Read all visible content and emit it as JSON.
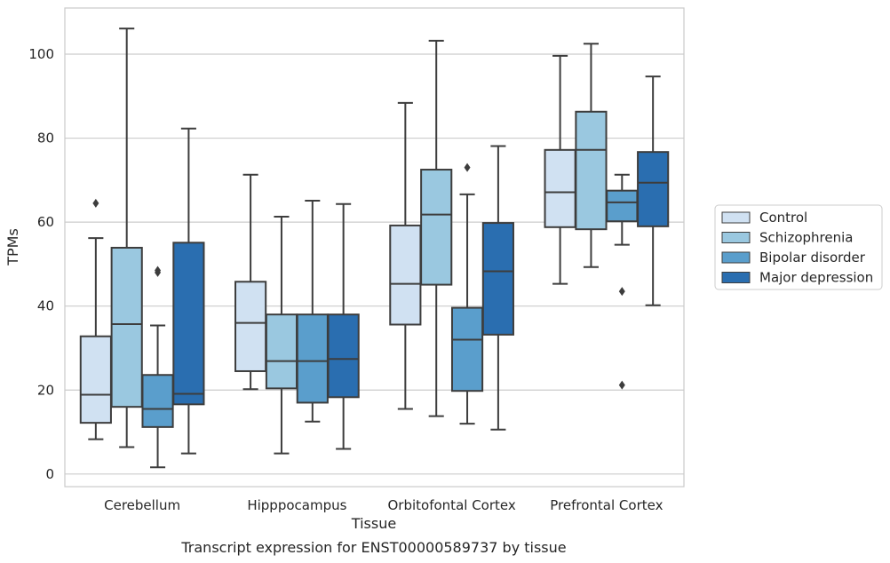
{
  "caption": "Transcript expression for ENST00000589737 by tissue",
  "chart_data": {
    "type": "box",
    "title": "",
    "xlabel": "Tissue",
    "ylabel": "TPMs",
    "ylim": [
      -3,
      111
    ],
    "y_ticks": [
      0,
      20,
      40,
      60,
      80,
      100
    ],
    "grid": "horizontal",
    "legend_position": "right",
    "categories": [
      "Cerebellum",
      "Hipppocampus",
      "Orbitofontal Cortex",
      "Prefrontal Cortex"
    ],
    "series": [
      {
        "name": "Control",
        "color": "#d0e1f2",
        "boxes": [
          {
            "whisker_low": 8.3,
            "q1": 12.2,
            "median": 18.9,
            "q3": 32.8,
            "whisker_high": 56.2,
            "outliers": [
              64.5
            ]
          },
          {
            "whisker_low": 20.2,
            "q1": 24.5,
            "median": 36.0,
            "q3": 45.8,
            "whisker_high": 71.3,
            "outliers": []
          },
          {
            "whisker_low": 15.5,
            "q1": 35.6,
            "median": 45.3,
            "q3": 59.2,
            "whisker_high": 88.4,
            "outliers": []
          },
          {
            "whisker_low": 45.3,
            "q1": 58.8,
            "median": 67.1,
            "q3": 77.2,
            "whisker_high": 99.6,
            "outliers": []
          }
        ]
      },
      {
        "name": "Schizophrenia",
        "color": "#9ac8e0",
        "boxes": [
          {
            "whisker_low": 6.4,
            "q1": 16.0,
            "median": 35.7,
            "q3": 53.9,
            "whisker_high": 106.1,
            "outliers": []
          },
          {
            "whisker_low": 4.9,
            "q1": 20.4,
            "median": 26.9,
            "q3": 38.0,
            "whisker_high": 61.3,
            "outliers": []
          },
          {
            "whisker_low": 13.8,
            "q1": 45.1,
            "median": 61.8,
            "q3": 72.5,
            "whisker_high": 103.2,
            "outliers": []
          },
          {
            "whisker_low": 49.3,
            "q1": 58.3,
            "median": 77.2,
            "q3": 86.3,
            "whisker_high": 102.5,
            "outliers": []
          }
        ]
      },
      {
        "name": "Bipolar disorder",
        "color": "#5a9ecc",
        "boxes": [
          {
            "whisker_low": 1.6,
            "q1": 11.2,
            "median": 15.5,
            "q3": 23.6,
            "whisker_high": 35.4,
            "outliers": [
              48.0,
              48.5
            ]
          },
          {
            "whisker_low": 12.5,
            "q1": 17.0,
            "median": 26.9,
            "q3": 38.0,
            "whisker_high": 65.1,
            "outliers": []
          },
          {
            "whisker_low": 12.0,
            "q1": 19.8,
            "median": 32.0,
            "q3": 39.6,
            "whisker_high": 66.6,
            "outliers": [
              73.0
            ]
          },
          {
            "whisker_low": 54.6,
            "q1": 60.2,
            "median": 64.7,
            "q3": 67.5,
            "whisker_high": 71.3,
            "outliers": [
              43.5,
              21.2
            ]
          }
        ]
      },
      {
        "name": "Major depression",
        "color": "#2a6eb0",
        "boxes": [
          {
            "whisker_low": 4.9,
            "q1": 16.6,
            "median": 19.1,
            "q3": 55.1,
            "whisker_high": 82.3,
            "outliers": []
          },
          {
            "whisker_low": 6.0,
            "q1": 18.3,
            "median": 27.4,
            "q3": 38.0,
            "whisker_high": 64.3,
            "outliers": []
          },
          {
            "whisker_low": 10.6,
            "q1": 33.2,
            "median": 48.3,
            "q3": 59.8,
            "whisker_high": 78.1,
            "outliers": []
          },
          {
            "whisker_low": 40.2,
            "q1": 59.0,
            "median": 69.4,
            "q3": 76.7,
            "whisker_high": 94.7,
            "outliers": []
          }
        ]
      }
    ]
  }
}
